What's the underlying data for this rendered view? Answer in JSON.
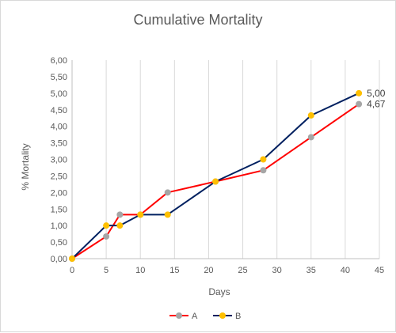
{
  "chart_data": {
    "type": "line",
    "title": "Cumulative Mortality",
    "xlabel": "Days",
    "ylabel": "% Mortality",
    "xlim": [
      0,
      45
    ],
    "ylim": [
      0,
      6
    ],
    "x_ticks": [
      "0",
      "5",
      "10",
      "15",
      "20",
      "25",
      "30",
      "35",
      "40",
      "45"
    ],
    "x_tick_values": [
      0,
      5,
      10,
      15,
      20,
      25,
      30,
      35,
      40,
      45
    ],
    "y_ticks": [
      "0,00",
      "0,50",
      "1,00",
      "1,50",
      "2,00",
      "2,50",
      "3,00",
      "3,50",
      "4,00",
      "4,50",
      "5,00",
      "5,50",
      "6,00"
    ],
    "y_tick_values": [
      0,
      0.5,
      1,
      1.5,
      2,
      2.5,
      3,
      3.5,
      4,
      4.5,
      5,
      5.5,
      6
    ],
    "grid": "vertical",
    "legend_position": "bottom",
    "series": [
      {
        "name": "A",
        "line_color": "#ff0000",
        "marker_color": "#a6a6a6",
        "x": [
          0,
          5,
          7,
          10,
          14,
          21,
          28,
          35,
          42
        ],
        "values": [
          0,
          0.67,
          1.33,
          1.33,
          2.0,
          2.33,
          2.67,
          3.67,
          4.67
        ]
      },
      {
        "name": "B",
        "line_color": "#002060",
        "marker_color": "#ffc000",
        "x": [
          0,
          5,
          7,
          10,
          14,
          21,
          28,
          35,
          42
        ],
        "values": [
          0,
          1.0,
          1.0,
          1.33,
          1.33,
          2.33,
          3.0,
          4.33,
          5.0
        ]
      }
    ],
    "data_labels": [
      {
        "series": "B",
        "x": 42,
        "y": 5.0,
        "text": "5,00"
      },
      {
        "series": "A",
        "x": 42,
        "y": 4.67,
        "text": "4,67"
      }
    ]
  }
}
